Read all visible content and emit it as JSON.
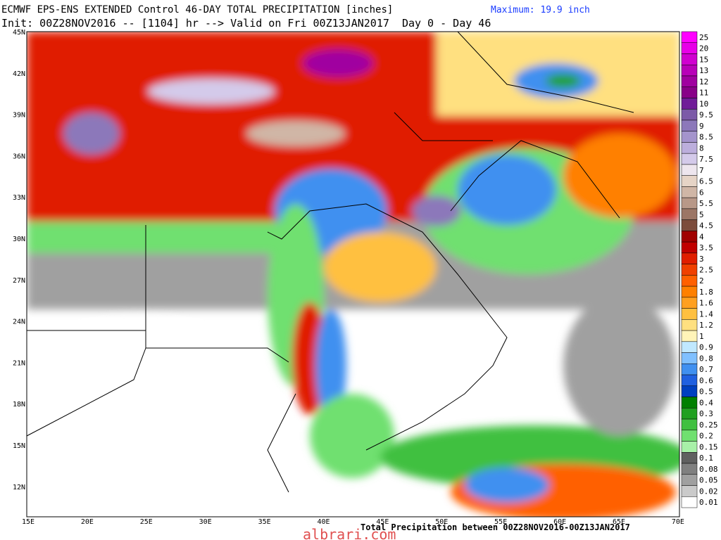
{
  "header": {
    "title": "ECMWF EPS-ENS EXTENDED Control 46-DAY TOTAL PRECIPITATION [inches]",
    "maximum": "Maximum: 19.9 inch",
    "init": "Init: 00Z28NOV2016 -- [1104] hr --> Valid on Fri 00Z13JAN2017  Day 0 - Day 46"
  },
  "map": {
    "lat_labels": [
      "45N",
      "42N",
      "39N",
      "36N",
      "33N",
      "30N",
      "27N",
      "24N",
      "21N",
      "18N",
      "15N",
      "12N"
    ],
    "lon_labels": [
      "15E",
      "20E",
      "25E",
      "30E",
      "35E",
      "40E",
      "45E",
      "50E",
      "55E",
      "60E",
      "65E",
      "70E"
    ]
  },
  "legend": [
    {
      "label": "25",
      "color": "#ff00ff"
    },
    {
      "label": "20",
      "color": "#e800e8"
    },
    {
      "label": "15",
      "color": "#d000d0"
    },
    {
      "label": "13",
      "color": "#b800b8"
    },
    {
      "label": "12",
      "color": "#a000a0"
    },
    {
      "label": "11",
      "color": "#880088"
    },
    {
      "label": "10",
      "color": "#701c98"
    },
    {
      "label": "9.5",
      "color": "#7c5aa8"
    },
    {
      "label": "9",
      "color": "#8c78ba"
    },
    {
      "label": "8.5",
      "color": "#a494cc"
    },
    {
      "label": "8",
      "color": "#bcaedc"
    },
    {
      "label": "7.5",
      "color": "#d4caea"
    },
    {
      "label": "7",
      "color": "#eee6ee"
    },
    {
      "label": "6.5",
      "color": "#e6d4c6"
    },
    {
      "label": "6",
      "color": "#d0b6a6"
    },
    {
      "label": "5.5",
      "color": "#b89888"
    },
    {
      "label": "5",
      "color": "#9c7666"
    },
    {
      "label": "4.5",
      "color": "#7c4c3c"
    },
    {
      "label": "4",
      "color": "#a00000"
    },
    {
      "label": "3.5",
      "color": "#c00000"
    },
    {
      "label": "3",
      "color": "#e01e00"
    },
    {
      "label": "2.5",
      "color": "#f04000"
    },
    {
      "label": "2",
      "color": "#ff6000"
    },
    {
      "label": "1.8",
      "color": "#ff8000"
    },
    {
      "label": "1.6",
      "color": "#ffa020"
    },
    {
      "label": "1.4",
      "color": "#ffc040"
    },
    {
      "label": "1.2",
      "color": "#ffe080"
    },
    {
      "label": "1",
      "color": "#fff4b8"
    },
    {
      "label": "0.9",
      "color": "#c0e8ff"
    },
    {
      "label": "0.8",
      "color": "#80c0ff"
    },
    {
      "label": "0.7",
      "color": "#4090f0"
    },
    {
      "label": "0.6",
      "color": "#2060e0"
    },
    {
      "label": "0.5",
      "color": "#0040c0"
    },
    {
      "label": "0.4",
      "color": "#008000"
    },
    {
      "label": "0.3",
      "color": "#20a020"
    },
    {
      "label": "0.25",
      "color": "#40c040"
    },
    {
      "label": "0.2",
      "color": "#70e070"
    },
    {
      "label": "0.15",
      "color": "#a8f0a8"
    },
    {
      "label": "0.1",
      "color": "#606060"
    },
    {
      "label": "0.08",
      "color": "#808080"
    },
    {
      "label": "0.05",
      "color": "#a0a0a0"
    },
    {
      "label": "0.02",
      "color": "#cacaca"
    },
    {
      "label": "0.01",
      "color": "#ffffff"
    }
  ],
  "footer": {
    "caption": "Total Precipitation between 00Z28NOV2016-00Z13JAN2017",
    "watermark": "albrari.com"
  }
}
